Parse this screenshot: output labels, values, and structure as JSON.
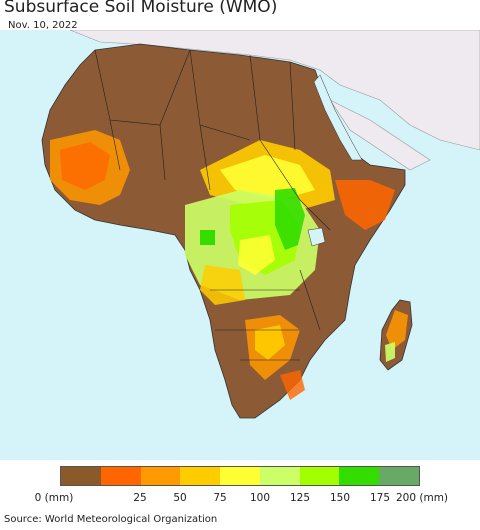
{
  "title": "Subsurface Soil Moisture (WMO)",
  "date": "Nov. 10, 2022",
  "legend": {
    "colors": [
      "#8B5A2B",
      "#FF6600",
      "#FF9900",
      "#FFCC00",
      "#FFFF33",
      "#CCFF66",
      "#A3FF00",
      "#33DD00",
      "#66AA66"
    ],
    "ticks": [
      "0 (mm)",
      "25",
      "50",
      "75",
      "100",
      "125",
      "150",
      "175",
      "200 (mm)"
    ]
  },
  "map": {
    "ocean_color": "#d4f4fa",
    "land_color": "#8c5a34",
    "outside_color": "#efeaf0"
  },
  "source": "Source: World Meteorological Organization"
}
